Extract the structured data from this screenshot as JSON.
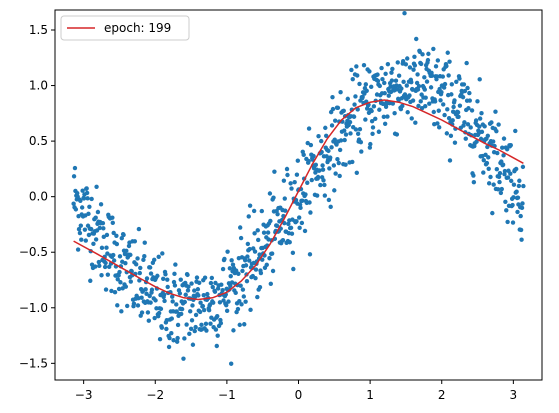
{
  "chart_data": {
    "type": "scatter",
    "title": "",
    "xlabel": "",
    "ylabel": "",
    "xlim": [
      -3.4,
      3.4
    ],
    "ylim": [
      -1.65,
      1.68
    ],
    "grid": false,
    "legend": {
      "location": "upper-left",
      "entries": [
        "epoch: 199"
      ]
    },
    "x_ticks": [
      -3,
      -2,
      -1,
      0,
      1,
      2,
      3
    ],
    "x_tick_labels": [
      "−3",
      "−2",
      "−1",
      "0",
      "1",
      "2",
      "3"
    ],
    "y_ticks": [
      -1.5,
      -1.0,
      -0.5,
      0.0,
      0.5,
      1.0,
      1.5
    ],
    "y_tick_labels": [
      "−1.5",
      "−1.0",
      "−0.5",
      "0.0",
      "0.5",
      "1.0",
      "1.5"
    ],
    "series": [
      {
        "kind": "scatter",
        "color": "#1f77b4",
        "description_generator": "noisy samples around y = sin(x), x from -3.14 to 3.14, about 1000 points, noise std about 0.2",
        "n_points": 1000,
        "x_range": [
          -3.14,
          3.14
        ],
        "noise_std": 0.2
      },
      {
        "kind": "line",
        "name": "epoch: 199",
        "color": "#d62728",
        "x": [
          -3.14,
          -2.8,
          -2.5,
          -2.2,
          -2.0,
          -1.8,
          -1.6,
          -1.4,
          -1.2,
          -1.0,
          -0.8,
          -0.6,
          -0.4,
          -0.2,
          0.0,
          0.2,
          0.4,
          0.6,
          0.8,
          1.0,
          1.2,
          1.4,
          1.6,
          1.8,
          2.0,
          2.2,
          2.4,
          2.6,
          2.8,
          3.0,
          3.14
        ],
        "y": [
          -0.4,
          -0.52,
          -0.63,
          -0.74,
          -0.81,
          -0.87,
          -0.91,
          -0.925,
          -0.91,
          -0.86,
          -0.76,
          -0.62,
          -0.43,
          -0.2,
          0.05,
          0.3,
          0.52,
          0.69,
          0.8,
          0.85,
          0.87,
          0.85,
          0.81,
          0.75,
          0.69,
          0.62,
          0.55,
          0.48,
          0.42,
          0.35,
          0.3
        ]
      }
    ]
  }
}
